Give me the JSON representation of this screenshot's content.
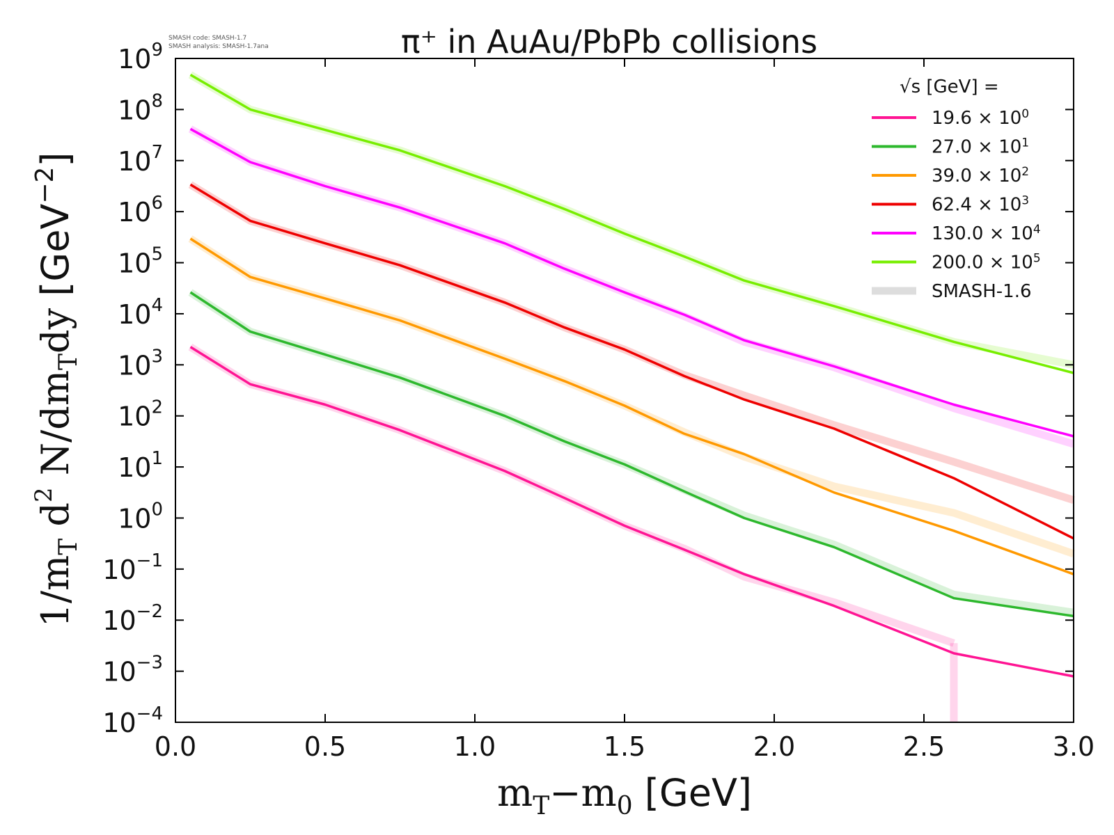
{
  "chart_data": {
    "type": "line",
    "title": "π⁺ in AuAu/PbPb collisions",
    "credits": [
      "SMASH code:      SMASH-1.7",
      "SMASH analysis: SMASH-1.7ana"
    ],
    "xlabel": "mT−m0 [GeV]",
    "ylabel": "1/mT d2 N/dmTdy [GeV−2]",
    "xlim": [
      0.0,
      3.0
    ],
    "ylim_log10": [
      -4,
      9
    ],
    "yscale": "log",
    "x_ticks": [
      "0.0",
      "0.5",
      "1.0",
      "1.5",
      "2.0",
      "2.5",
      "3.0"
    ],
    "y_ticks": [
      {
        "base": "10",
        "exp": "−4",
        "value": -4
      },
      {
        "base": "10",
        "exp": "−3",
        "value": -3
      },
      {
        "base": "10",
        "exp": "−2",
        "value": -2
      },
      {
        "base": "10",
        "exp": "−1",
        "value": -1
      },
      {
        "base": "10",
        "exp": "0",
        "value": 0
      },
      {
        "base": "10",
        "exp": "1",
        "value": 1
      },
      {
        "base": "10",
        "exp": "2",
        "value": 2
      },
      {
        "base": "10",
        "exp": "3",
        "value": 3
      },
      {
        "base": "10",
        "exp": "4",
        "value": 4
      },
      {
        "base": "10",
        "exp": "5",
        "value": 5
      },
      {
        "base": "10",
        "exp": "6",
        "value": 6
      },
      {
        "base": "10",
        "exp": "7",
        "value": 7
      },
      {
        "base": "10",
        "exp": "8",
        "value": 8
      },
      {
        "base": "10",
        "exp": "9",
        "value": 9
      }
    ],
    "legend": {
      "title": "√s  [GeV] =",
      "placement": "top-right"
    },
    "x": [
      0.05,
      0.25,
      0.5,
      0.75,
      1.1,
      1.3,
      1.5,
      1.7,
      1.9,
      2.2,
      2.6,
      3.0
    ],
    "series": [
      {
        "name": "19.6 × 10",
        "sup": "0",
        "color": "#ff1493",
        "log10_values": [
          3.35,
          2.62,
          2.22,
          1.72,
          0.92,
          0.39,
          -0.15,
          -0.62,
          -1.1,
          -1.72,
          -2.65,
          -3.1
        ]
      },
      {
        "name": "27.0 × 10",
        "sup": "1",
        "color": "#2db82d",
        "log10_values": [
          4.42,
          3.65,
          3.2,
          2.75,
          2.0,
          1.5,
          1.05,
          0.52,
          0.0,
          -0.57,
          -1.57,
          -1.92
        ]
      },
      {
        "name": "39.0 × 10",
        "sup": "2",
        "color": "#ff9900",
        "log10_values": [
          5.47,
          4.72,
          4.3,
          3.87,
          3.12,
          2.68,
          2.2,
          1.65,
          1.25,
          0.5,
          -0.25,
          -1.1
        ]
      },
      {
        "name": "62.4 × 10",
        "sup": "3",
        "color": "#ee0000",
        "log10_values": [
          6.53,
          5.82,
          5.38,
          4.95,
          4.22,
          3.73,
          3.3,
          2.78,
          2.32,
          1.75,
          0.78,
          -0.4
        ]
      },
      {
        "name": "130.0 × 10",
        "sup": "4",
        "color": "#ff00ff",
        "log10_values": [
          7.62,
          6.97,
          6.5,
          6.08,
          5.38,
          4.88,
          4.42,
          3.98,
          3.48,
          2.97,
          2.22,
          1.6
        ]
      },
      {
        "name": "200.0 × 10",
        "sup": "5",
        "color": "#77ee00",
        "log10_values": [
          8.68,
          8.0,
          7.6,
          7.2,
          6.5,
          6.05,
          5.57,
          5.12,
          4.65,
          4.15,
          3.45,
          2.84
        ]
      }
    ],
    "reference": {
      "name": "SMASH-1.6",
      "legend_color": "#dddddd",
      "note": "faint wide bands in series colors",
      "series": [
        {
          "color": "#ff1493",
          "log10_values": [
            3.35,
            2.62,
            2.22,
            1.72,
            0.92,
            0.39,
            -0.15,
            -0.6,
            -1.15,
            -1.65,
            -2.45,
            null
          ]
        },
        {
          "color": "#2db82d",
          "log10_values": [
            4.42,
            3.65,
            3.2,
            2.75,
            2.0,
            1.5,
            1.05,
            0.55,
            0.05,
            -0.52,
            -1.5,
            -1.85
          ]
        },
        {
          "color": "#ff9900",
          "log10_values": [
            5.47,
            4.72,
            4.3,
            3.87,
            3.12,
            2.68,
            2.2,
            1.68,
            1.2,
            0.62,
            0.1,
            -0.7
          ]
        },
        {
          "color": "#ee0000",
          "log10_values": [
            6.53,
            5.82,
            5.38,
            4.95,
            4.22,
            3.73,
            3.3,
            2.8,
            2.4,
            1.82,
            1.1,
            0.35
          ]
        },
        {
          "color": "#ff00ff",
          "log10_values": [
            7.62,
            6.97,
            6.5,
            6.08,
            5.38,
            4.88,
            4.42,
            3.95,
            3.45,
            2.95,
            2.15,
            1.45
          ]
        },
        {
          "color": "#77ee00",
          "log10_values": [
            8.68,
            8.0,
            7.6,
            7.2,
            6.5,
            6.05,
            5.57,
            5.12,
            4.65,
            4.15,
            3.45,
            3.0
          ]
        }
      ]
    }
  }
}
